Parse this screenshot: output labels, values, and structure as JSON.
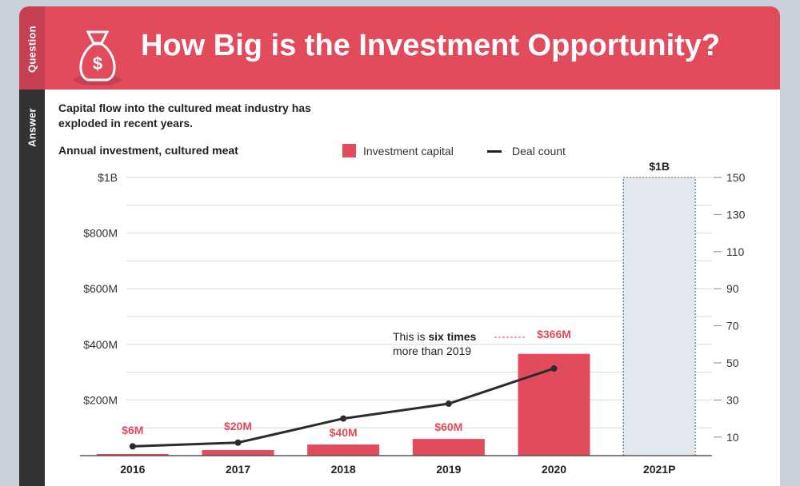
{
  "sidebar": {
    "question_label": "Question",
    "answer_label": "Answer"
  },
  "header": {
    "title": "How Big is the Investment Opportunity?",
    "icon": "money-bag-icon"
  },
  "subtitle": "Capital flow into the cultured meat industry has exploded in recent years.",
  "colors": {
    "accent": "#e14b5c",
    "projection_fill": "#e3e8ef",
    "line": "#2b2b2b"
  },
  "chart_data": {
    "type": "bar",
    "title": "Annual investment, cultured meat",
    "categories": [
      "2016",
      "2017",
      "2018",
      "2019",
      "2020",
      "2021P"
    ],
    "series": [
      {
        "name": "Investment capital",
        "axis": "left",
        "values": [
          6,
          20,
          40,
          60,
          366,
          1000
        ],
        "value_labels": [
          "$6M",
          "$20M",
          "$40M",
          "$60M",
          "$366M",
          "$1B"
        ],
        "projected": [
          false,
          false,
          false,
          false,
          false,
          true
        ]
      },
      {
        "name": "Deal count",
        "axis": "right",
        "type": "line",
        "values": [
          5,
          7,
          20,
          28,
          47,
          null
        ]
      }
    ],
    "left_axis": {
      "ylim": [
        0,
        1000
      ],
      "ticks": [
        200,
        400,
        600,
        800,
        1000
      ],
      "tick_labels": [
        "$200M",
        "$400M",
        "$600M",
        "$800M",
        "$1B"
      ]
    },
    "right_axis": {
      "ylim": [
        0,
        150
      ],
      "ticks": [
        10,
        30,
        50,
        70,
        90,
        110,
        130,
        150
      ]
    },
    "legend": [
      "Investment capital",
      "Deal count"
    ],
    "annotation": {
      "prefix": "This is ",
      "bold": "six times",
      "line2": "more than 2019",
      "target": "2020"
    }
  }
}
